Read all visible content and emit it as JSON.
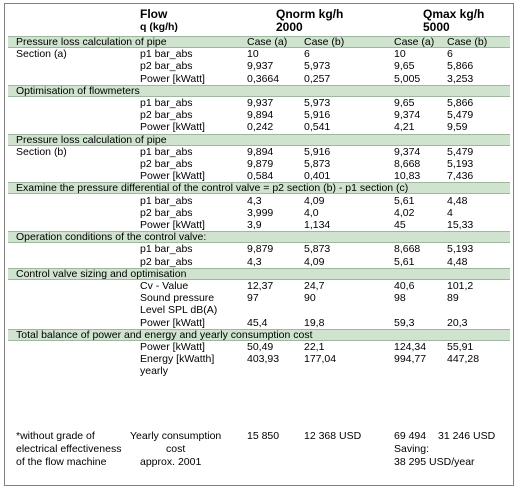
{
  "header": {
    "flow": "Flow",
    "flow_unit": "q (kg/h)",
    "qnorm_title": "Qnorm kg/h",
    "qnorm_value": "2000",
    "qmax_title": "Qmax kg/h",
    "qmax_value": "5000"
  },
  "sections": [
    {
      "band_label": "Pressure loss calculation of pipe",
      "band_cases": [
        "Case (a)",
        "Case (b)",
        "Case (a)",
        "Case (b)"
      ],
      "rows": [
        {
          "label": "Section (a)",
          "param": "p1 bar_abs",
          "values": [
            "10",
            "6",
            "10",
            "6"
          ]
        },
        {
          "label": "",
          "param": "p2 bar_abs",
          "values": [
            "9,937",
            "5,973",
            "9,65",
            "5,866"
          ]
        },
        {
          "label": "",
          "param": "Power [kWatt]",
          "values": [
            "0,3664",
            "0,257",
            "5,005",
            "3,253"
          ]
        }
      ]
    },
    {
      "band_label": "Optimisation of flowmeters",
      "band_cases": [],
      "rows": [
        {
          "label": "",
          "param": "p1 bar_abs",
          "values": [
            "9,937",
            "5,973",
            "9,65",
            "5,866"
          ]
        },
        {
          "label": "",
          "param": "p2 bar_abs",
          "values": [
            "9,894",
            "5,916",
            "9,374",
            "5,479"
          ]
        },
        {
          "label": "",
          "param": "Power [kWatt]",
          "values": [
            "0,242",
            "0,541",
            "4,21",
            "9,59"
          ]
        }
      ]
    },
    {
      "band_label": "Pressure loss calculation of pipe",
      "band_cases": [],
      "rows": [
        {
          "label": "Section (b)",
          "param": "p1 bar_abs",
          "values": [
            "9,894",
            "5,916",
            "9,374",
            "5,479"
          ]
        },
        {
          "label": "",
          "param": "p2 bar_abs",
          "values": [
            "9,879",
            "5,873",
            "8,668",
            "5,193"
          ]
        },
        {
          "label": "",
          "param": "Power [kWatt]",
          "values": [
            "0,584",
            "0,401",
            "10,83",
            "7,436"
          ]
        }
      ]
    },
    {
      "band_label": "Examine the pressure differential of the control valve = p2 section (b) - p1 section (c)",
      "band_cases": [],
      "rows": [
        {
          "label": "",
          "param": "p1 bar_abs",
          "values": [
            "4,3",
            "4,09",
            "5,61",
            "4,48"
          ]
        },
        {
          "label": "",
          "param": "p2 bar_abs",
          "values": [
            "3,999",
            "4,0",
            "4,02",
            "4"
          ]
        },
        {
          "label": "",
          "param": "Power [kWatt]",
          "values": [
            "3,9",
            "1,134",
            "45",
            "15,33"
          ]
        }
      ]
    },
    {
      "band_label": "Operation conditions of the control valve:",
      "band_cases": [],
      "rows": [
        {
          "label": "",
          "param": "p1 bar_abs",
          "values": [
            "9,879",
            "5,873",
            "8,668",
            "5,193"
          ]
        },
        {
          "label": "",
          "param": "p2 bar_abs",
          "values": [
            "4,3",
            "4,09",
            "5,61",
            "4,48"
          ]
        }
      ]
    },
    {
      "band_label": "Control valve sizing and optimisation",
      "band_cases": [],
      "rows": [
        {
          "label": "",
          "param": "Cv - Value",
          "values": [
            "12,37",
            "24,7",
            "40,6",
            "101,2"
          ]
        },
        {
          "label": "",
          "param": "Sound pressure",
          "values": [
            "97",
            "90",
            "98",
            "89"
          ]
        },
        {
          "label": "",
          "param": "Level SPL dB(A)",
          "values": [
            "",
            "",
            "",
            ""
          ]
        },
        {
          "label": "",
          "param": "Power [kWatt]",
          "values": [
            "45,4",
            "19,8",
            "59,3",
            "20,3"
          ]
        }
      ]
    },
    {
      "band_label": "Total balance of power and energy and yearly consumption cost",
      "band_cases": [],
      "rows": [
        {
          "label": "",
          "param": "Power [kWatt]",
          "values": [
            "50,49",
            "22,1",
            "124,34",
            "55,91"
          ]
        },
        {
          "label": "",
          "param": "Energy [kWatth]",
          "values": [
            "403,93",
            "177,04",
            "994,77",
            "447,28"
          ]
        },
        {
          "label": "",
          "param": "yearly",
          "values": [
            "",
            "",
            "",
            ""
          ]
        }
      ]
    }
  ],
  "footer": {
    "note_line1": "*without grade of",
    "note_line2": "electrical effectiveness",
    "note_line3": "of the flow machine",
    "yearly_line1": "Yearly consumption",
    "yearly_line2": "cost",
    "yearly_line3": "approx. 2001",
    "qnorm_cost_a": "15 850",
    "qnorm_cost_b": "12 368 USD",
    "qmax_cost_a": "69 494",
    "qmax_cost_b": "31 246 USD",
    "saving_label": "Saving:",
    "saving_value": "38 295 USD/year"
  }
}
